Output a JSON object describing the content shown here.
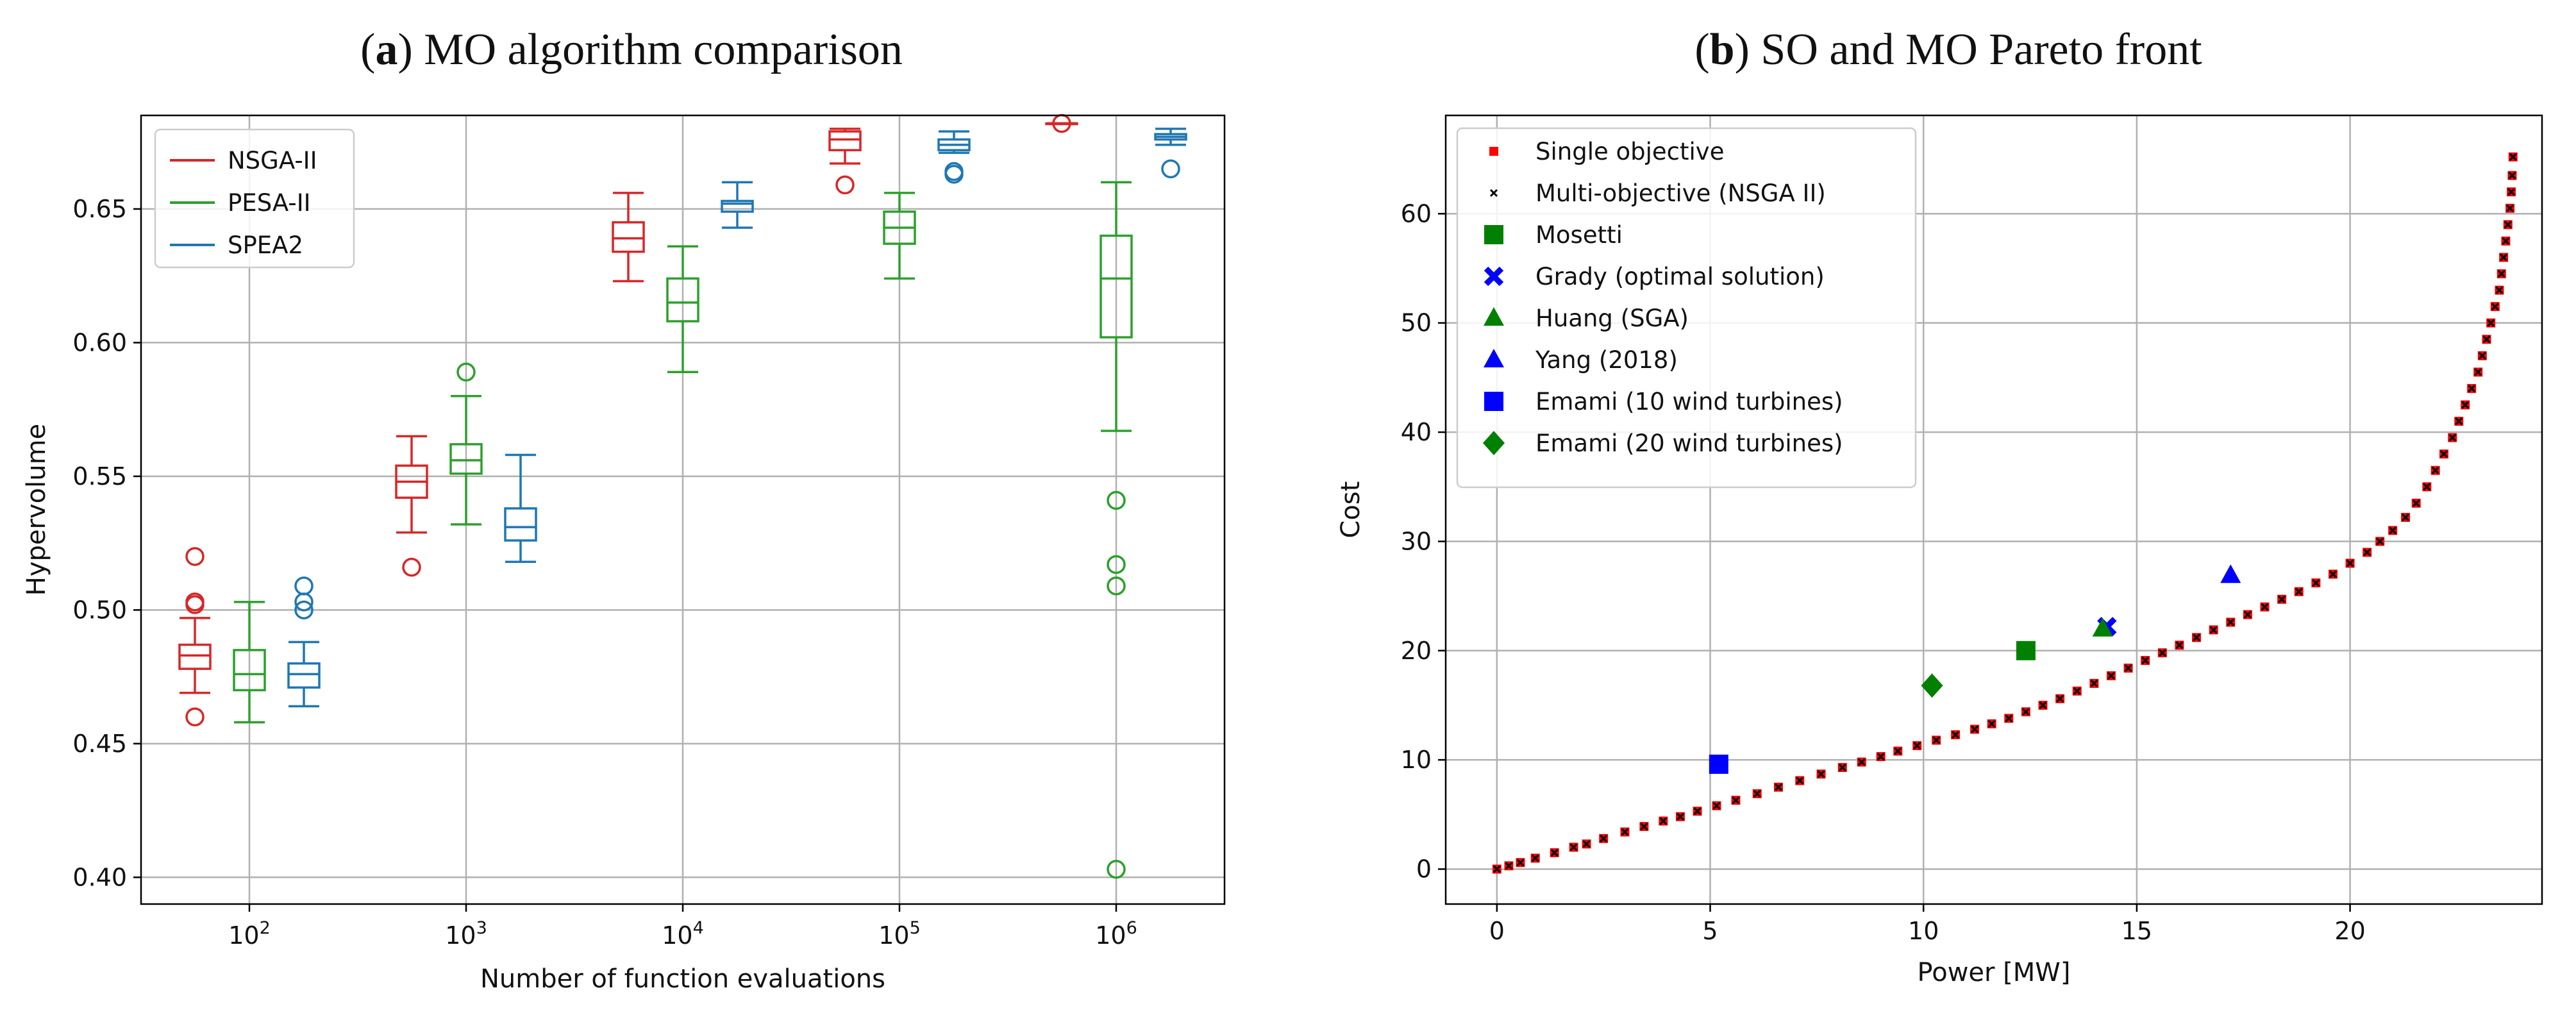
{
  "panel_a": {
    "title_letter": "a",
    "title_text": "MO algorithm comparison"
  },
  "panel_b": {
    "title_letter": "b",
    "title_text": "SO and MO Pareto front"
  },
  "chart_data": [
    {
      "type": "box",
      "xlabel": "Number of function evaluations",
      "ylabel": "Hypervolume",
      "ylim": [
        0.39,
        0.685
      ],
      "yticks": [
        0.4,
        0.45,
        0.5,
        0.55,
        0.6,
        0.65
      ],
      "ytick_labels": [
        "0.40",
        "0.45",
        "0.50",
        "0.55",
        "0.60",
        "0.65"
      ],
      "categories": [
        "10^2",
        "10^3",
        "10^4",
        "10^5",
        "10^6"
      ],
      "grid": true,
      "legend_position": "top-left",
      "series": [
        {
          "name": "NSGA-II",
          "color": "#d62728",
          "boxes": [
            {
              "whislo": 0.469,
              "q1": 0.478,
              "med": 0.483,
              "q3": 0.487,
              "whishi": 0.497,
              "fliers": [
                0.52,
                0.503,
                0.502,
                0.46
              ]
            },
            {
              "whislo": 0.529,
              "q1": 0.542,
              "med": 0.548,
              "q3": 0.554,
              "whishi": 0.565,
              "fliers": [
                0.516
              ]
            },
            {
              "whislo": 0.623,
              "q1": 0.634,
              "med": 0.639,
              "q3": 0.645,
              "whishi": 0.656,
              "fliers": []
            },
            {
              "whislo": 0.667,
              "q1": 0.672,
              "med": 0.676,
              "q3": 0.679,
              "whishi": 0.68,
              "fliers": [
                0.659
              ]
            },
            {
              "whislo": 0.682,
              "q1": 0.682,
              "med": 0.682,
              "q3": 0.682,
              "whishi": 0.682,
              "fliers": [
                0.682
              ]
            }
          ]
        },
        {
          "name": "PESA-II",
          "color": "#2ca02c",
          "boxes": [
            {
              "whislo": 0.458,
              "q1": 0.47,
              "med": 0.476,
              "q3": 0.485,
              "whishi": 0.503,
              "fliers": []
            },
            {
              "whislo": 0.532,
              "q1": 0.551,
              "med": 0.556,
              "q3": 0.562,
              "whishi": 0.58,
              "fliers": [
                0.589
              ]
            },
            {
              "whislo": 0.589,
              "q1": 0.608,
              "med": 0.615,
              "q3": 0.624,
              "whishi": 0.636,
              "fliers": []
            },
            {
              "whislo": 0.624,
              "q1": 0.637,
              "med": 0.643,
              "q3": 0.649,
              "whishi": 0.656,
              "fliers": []
            },
            {
              "whislo": 0.567,
              "q1": 0.602,
              "med": 0.624,
              "q3": 0.64,
              "whishi": 0.66,
              "fliers": [
                0.541,
                0.517,
                0.509,
                0.403
              ]
            }
          ]
        },
        {
          "name": "SPEA2",
          "color": "#1f77b4",
          "boxes": [
            {
              "whislo": 0.464,
              "q1": 0.471,
              "med": 0.476,
              "q3": 0.48,
              "whishi": 0.488,
              "fliers": [
                0.509,
                0.503,
                0.5
              ]
            },
            {
              "whislo": 0.518,
              "q1": 0.526,
              "med": 0.531,
              "q3": 0.538,
              "whishi": 0.558,
              "fliers": []
            },
            {
              "whislo": 0.643,
              "q1": 0.649,
              "med": 0.652,
              "q3": 0.653,
              "whishi": 0.66,
              "fliers": []
            },
            {
              "whislo": 0.671,
              "q1": 0.672,
              "med": 0.674,
              "q3": 0.676,
              "whishi": 0.679,
              "fliers": [
                0.664,
                0.663
              ]
            },
            {
              "whislo": 0.674,
              "q1": 0.676,
              "med": 0.677,
              "q3": 0.678,
              "whishi": 0.68,
              "fliers": [
                0.665
              ]
            }
          ]
        }
      ]
    },
    {
      "type": "scatter",
      "xlabel": "Power [MW]",
      "ylabel": "Cost",
      "xlim": [
        -1.2,
        24.5
      ],
      "ylim": [
        -3.2,
        69
      ],
      "xticks": [
        0,
        5,
        10,
        15,
        20
      ],
      "yticks": [
        0,
        10,
        20,
        30,
        40,
        50,
        60
      ],
      "grid": true,
      "legend_position": "top-left",
      "front_points": [
        [
          0,
          0
        ],
        [
          0.28,
          0.3
        ],
        [
          0.55,
          0.6
        ],
        [
          0.9,
          1
        ],
        [
          1.35,
          1.5
        ],
        [
          1.8,
          2
        ],
        [
          2.1,
          2.3
        ],
        [
          2.5,
          2.8
        ],
        [
          3,
          3.4
        ],
        [
          3.45,
          3.9
        ],
        [
          3.9,
          4.4
        ],
        [
          4.3,
          4.8
        ],
        [
          4.7,
          5.3
        ],
        [
          5.15,
          5.8
        ],
        [
          5.6,
          6.3
        ],
        [
          6.1,
          6.9
        ],
        [
          6.6,
          7.5
        ],
        [
          7.1,
          8.1
        ],
        [
          7.6,
          8.7
        ],
        [
          8.1,
          9.3
        ],
        [
          8.55,
          9.8
        ],
        [
          9,
          10.3
        ],
        [
          9.4,
          10.8
        ],
        [
          9.85,
          11.3
        ],
        [
          10.3,
          11.8
        ],
        [
          10.75,
          12.3
        ],
        [
          11.2,
          12.8
        ],
        [
          11.6,
          13.3
        ],
        [
          12,
          13.8
        ],
        [
          12.4,
          14.4
        ],
        [
          12.8,
          15
        ],
        [
          13.2,
          15.6
        ],
        [
          13.6,
          16.3
        ],
        [
          14,
          17
        ],
        [
          14.4,
          17.7
        ],
        [
          14.8,
          18.4
        ],
        [
          15.2,
          19.1
        ],
        [
          15.6,
          19.8
        ],
        [
          16,
          20.5
        ],
        [
          16.4,
          21.2
        ],
        [
          16.8,
          21.9
        ],
        [
          17.2,
          22.6
        ],
        [
          17.6,
          23.3
        ],
        [
          18,
          24
        ],
        [
          18.4,
          24.7
        ],
        [
          18.8,
          25.4
        ],
        [
          19.2,
          26.2
        ],
        [
          19.6,
          27
        ],
        [
          20,
          28
        ],
        [
          20.4,
          29
        ],
        [
          20.7,
          30
        ],
        [
          21,
          31
        ],
        [
          21.3,
          32.2
        ],
        [
          21.55,
          33.5
        ],
        [
          21.8,
          35
        ],
        [
          22,
          36.5
        ],
        [
          22.2,
          38
        ],
        [
          22.4,
          39.5
        ],
        [
          22.55,
          41
        ],
        [
          22.7,
          42.5
        ],
        [
          22.85,
          44
        ],
        [
          23,
          45.5
        ],
        [
          23.1,
          47
        ],
        [
          23.2,
          48.5
        ],
        [
          23.3,
          50
        ],
        [
          23.4,
          51.5
        ],
        [
          23.5,
          53
        ],
        [
          23.55,
          54.5
        ],
        [
          23.6,
          56
        ],
        [
          23.65,
          57.5
        ],
        [
          23.7,
          59
        ],
        [
          23.75,
          60.5
        ],
        [
          23.78,
          62
        ],
        [
          23.8,
          63.5
        ],
        [
          23.82,
          65.2
        ]
      ],
      "series": [
        {
          "name": "Single objective",
          "marker": "square-small",
          "color": "#ff0000"
        },
        {
          "name": "Multi-objective (NSGA II)",
          "marker": "x-small",
          "color": "#000000"
        },
        {
          "name": "Mosetti",
          "marker": "square",
          "color": "#008000",
          "points": [
            [
              12.4,
              20
            ]
          ]
        },
        {
          "name": "Grady (optimal solution)",
          "marker": "x-bold",
          "color": "#0000ff",
          "points": [
            [
              14.3,
              22.2
            ]
          ]
        },
        {
          "name": "Huang (SGA)",
          "marker": "triangle",
          "color": "#008000",
          "points": [
            [
              14.2,
              22.0
            ]
          ]
        },
        {
          "name": "Yang (2018)",
          "marker": "triangle",
          "color": "#0000ff",
          "points": [
            [
              17.2,
              26.9
            ]
          ]
        },
        {
          "name": "Emami (10 wind turbines)",
          "marker": "square",
          "color": "#0000ff",
          "points": [
            [
              5.2,
              9.6
            ]
          ]
        },
        {
          "name": "Emami (20 wind turbines)",
          "marker": "diamond",
          "color": "#008000",
          "points": [
            [
              10.2,
              16.8
            ]
          ]
        }
      ]
    }
  ]
}
